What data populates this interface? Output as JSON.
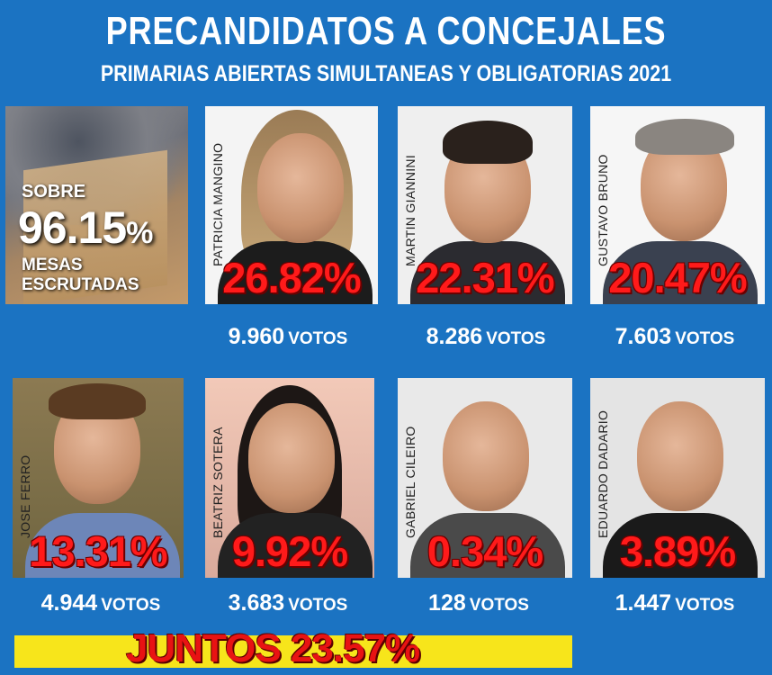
{
  "header": {
    "title": "PRECANDIDATOS A CONCEJALES",
    "subtitle": "PRIMARIAS ABIERTAS SIMULTANEAS Y OBLIGATORIAS 2021"
  },
  "scrutiny": {
    "prefix": "SOBRE",
    "percent_number": "96.15",
    "percent_sign": "%",
    "suffix_line1": "MESAS",
    "suffix_line2": "ESCRUTADAS"
  },
  "candidates": [
    {
      "name": "PATRICIA MANGINO",
      "percent": "26.82%",
      "votes_number": "9.960",
      "votes_unit": "VOTOS"
    },
    {
      "name": "MARTIN GIANNINI",
      "percent": "22.31%",
      "votes_number": "8.286",
      "votes_unit": "VOTOS"
    },
    {
      "name": "GUSTAVO BRUNO",
      "percent": "20.47%",
      "votes_number": "7.603",
      "votes_unit": "VOTOS"
    },
    {
      "name": "JOSE FERRO",
      "percent": "13.31%",
      "votes_number": "4.944",
      "votes_unit": "VOTOS"
    },
    {
      "name": "BEATRIZ SOTERA",
      "percent": "9.92%",
      "votes_number": "3.683",
      "votes_unit": "VOTOS"
    },
    {
      "name": "GABRIEL CILEIRO",
      "percent": "0.34%",
      "votes_number": "128",
      "votes_unit": "VOTOS"
    },
    {
      "name": "EDUARDO DADARIO",
      "percent": "3.89%",
      "votes_number": "1.447",
      "votes_unit": "VOTOS"
    }
  ],
  "banner": {
    "text": "JUNTOS 23.57%"
  },
  "colors": {
    "background": "#1b73c2",
    "percent_red": "#ff1a1a",
    "banner_yellow": "#f7e51b"
  }
}
